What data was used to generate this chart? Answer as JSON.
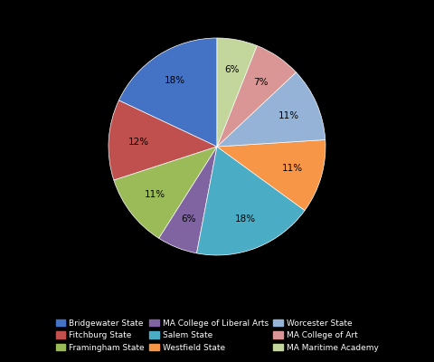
{
  "labels": [
    "Bridgewater State",
    "Fitchburg State",
    "Framingham State",
    "MA College of Liberal Arts",
    "Salem State",
    "Westfield State",
    "Worcester State",
    "MA College of Art",
    "MA Maritime Academy"
  ],
  "values": [
    18,
    12,
    11,
    6,
    18,
    11,
    11,
    7,
    6
  ],
  "colors": [
    "#4472C4",
    "#C0504D",
    "#9BBB59",
    "#8064A2",
    "#4BACC6",
    "#F79646",
    "#95B3D7",
    "#D99694",
    "#C3D69B"
  ],
  "startangle": 90,
  "legend_fontsize": 6.5,
  "autopct_fontsize": 7.5,
  "background_color": "#000000",
  "text_color": "#ffffff"
}
